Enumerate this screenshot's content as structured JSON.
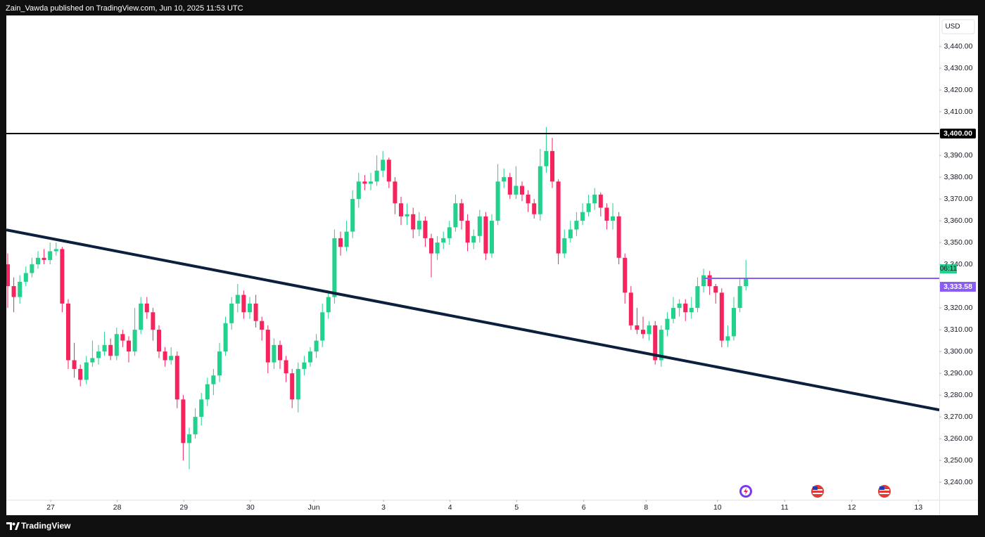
{
  "header": {
    "text": "Zain_Vawda published on TradingView.com, Jun 10, 2025 11:53 UTC"
  },
  "footer": {
    "brand": "TradingView"
  },
  "chart_data": {
    "type": "candlestick",
    "currency": "USD",
    "up_color": "#22d18b",
    "down_color": "#f5245d",
    "grid": false,
    "ylim": [
      3232.3,
      3454.2
    ],
    "yticks": [
      {
        "value": 3240,
        "label": "3,240.00"
      },
      {
        "value": 3250,
        "label": "3,250.00"
      },
      {
        "value": 3260,
        "label": "3,260.00"
      },
      {
        "value": 3270,
        "label": "3,270.00"
      },
      {
        "value": 3280,
        "label": "3,280.00"
      },
      {
        "value": 3290,
        "label": "3,290.00"
      },
      {
        "value": 3300,
        "label": "3,300.00"
      },
      {
        "value": 3310,
        "label": "3,310.00"
      },
      {
        "value": 3320,
        "label": "3,320.00"
      },
      {
        "value": 3330,
        "label": "3,330.00"
      },
      {
        "value": 3340,
        "label": "3,340.00"
      },
      {
        "value": 3350,
        "label": "3,350.00"
      },
      {
        "value": 3360,
        "label": "3,360.00"
      },
      {
        "value": 3370,
        "label": "3,370.00"
      },
      {
        "value": 3380,
        "label": "3,380.00"
      },
      {
        "value": 3390,
        "label": "3,390.00"
      },
      {
        "value": 3410,
        "label": "3,410.00"
      },
      {
        "value": 3420,
        "label": "3,420.00"
      },
      {
        "value": 3430,
        "label": "3,430.00"
      },
      {
        "value": 3440,
        "label": "3,440.00"
      }
    ],
    "xlim": [
      -0.23,
      153.95
    ],
    "xticks": [
      {
        "value": 7.1,
        "label": "27"
      },
      {
        "value": 18.1,
        "label": "28"
      },
      {
        "value": 29.1,
        "label": "29"
      },
      {
        "value": 40.1,
        "label": "30"
      },
      {
        "value": 50.6,
        "label": "Jun"
      },
      {
        "value": 62.1,
        "label": "3"
      },
      {
        "value": 73.1,
        "label": "4"
      },
      {
        "value": 84.1,
        "label": "5"
      },
      {
        "value": 95.2,
        "label": "6"
      },
      {
        "value": 105.5,
        "label": "8"
      },
      {
        "value": 117.3,
        "label": "10"
      },
      {
        "value": 128.4,
        "label": "11"
      },
      {
        "value": 139.5,
        "label": "12"
      },
      {
        "value": 150.5,
        "label": "13"
      }
    ],
    "candles": [
      [
        3340,
        3345,
        3320,
        3330
      ],
      [
        3330,
        3334,
        3318,
        3325
      ],
      [
        3325,
        3335,
        3322,
        3332
      ],
      [
        3332,
        3339,
        3330,
        3336
      ],
      [
        3336,
        3343,
        3334,
        3340
      ],
      [
        3340,
        3346,
        3338,
        3343
      ],
      [
        3343,
        3347,
        3340,
        3342
      ],
      [
        3342,
        3350,
        3340,
        3346
      ],
      [
        3346,
        3350,
        3344,
        3347
      ],
      [
        3347,
        3348,
        3318,
        3322
      ],
      [
        3322,
        3324,
        3292,
        3296
      ],
      [
        3296,
        3304,
        3288,
        3292
      ],
      [
        3292,
        3294,
        3284,
        3287
      ],
      [
        3287,
        3298,
        3285,
        3295
      ],
      [
        3295,
        3305,
        3293,
        3297
      ],
      [
        3297,
        3303,
        3294,
        3300
      ],
      [
        3300,
        3309,
        3298,
        3303
      ],
      [
        3303,
        3306,
        3296,
        3298
      ],
      [
        3298,
        3311,
        3296,
        3308
      ],
      [
        3308,
        3310,
        3302,
        3305
      ],
      [
        3305,
        3307,
        3295,
        3300
      ],
      [
        3300,
        3320,
        3298,
        3310
      ],
      [
        3310,
        3325,
        3308,
        3322
      ],
      [
        3322,
        3325,
        3315,
        3318
      ],
      [
        3318,
        3320,
        3305,
        3310
      ],
      [
        3310,
        3312,
        3297,
        3300
      ],
      [
        3300,
        3302,
        3293,
        3296
      ],
      [
        3296,
        3302,
        3294,
        3298
      ],
      [
        3298,
        3300,
        3274,
        3278
      ],
      [
        3278,
        3280,
        3250,
        3258
      ],
      [
        3258,
        3265,
        3246,
        3262
      ],
      [
        3262,
        3274,
        3260,
        3270
      ],
      [
        3270,
        3281,
        3266,
        3278
      ],
      [
        3278,
        3288,
        3275,
        3285
      ],
      [
        3285,
        3292,
        3280,
        3289
      ],
      [
        3289,
        3304,
        3286,
        3300
      ],
      [
        3300,
        3316,
        3298,
        3313
      ],
      [
        3313,
        3325,
        3310,
        3322
      ],
      [
        3322,
        3331,
        3318,
        3326
      ],
      [
        3326,
        3328,
        3315,
        3318
      ],
      [
        3318,
        3325,
        3315,
        3322
      ],
      [
        3322,
        3326,
        3311,
        3314
      ],
      [
        3314,
        3316,
        3305,
        3310
      ],
      [
        3310,
        3312,
        3290,
        3295
      ],
      [
        3295,
        3306,
        3292,
        3303
      ],
      [
        3303,
        3305,
        3292,
        3296
      ],
      [
        3296,
        3298,
        3286,
        3290
      ],
      [
        3290,
        3292,
        3274,
        3278
      ],
      [
        3278,
        3295,
        3272,
        3292
      ],
      [
        3292,
        3298,
        3289,
        3295
      ],
      [
        3295,
        3302,
        3293,
        3300
      ],
      [
        3300,
        3308,
        3297,
        3305
      ],
      [
        3305,
        3322,
        3302,
        3318
      ],
      [
        3318,
        3328,
        3315,
        3325
      ],
      [
        3325,
        3356,
        3322,
        3352
      ],
      [
        3352,
        3355,
        3344,
        3348
      ],
      [
        3348,
        3360,
        3346,
        3355
      ],
      [
        3355,
        3374,
        3352,
        3370
      ],
      [
        3370,
        3382,
        3366,
        3378
      ],
      [
        3378,
        3381,
        3374,
        3377
      ],
      [
        3377,
        3382,
        3374,
        3378
      ],
      [
        3378,
        3390,
        3376,
        3383
      ],
      [
        3383,
        3392,
        3380,
        3388
      ],
      [
        3388,
        3389,
        3375,
        3378
      ],
      [
        3378,
        3380,
        3363,
        3368
      ],
      [
        3368,
        3371,
        3358,
        3362
      ],
      [
        3362,
        3368,
        3358,
        3363
      ],
      [
        3363,
        3366,
        3352,
        3356
      ],
      [
        3356,
        3364,
        3353,
        3360
      ],
      [
        3360,
        3362,
        3348,
        3352
      ],
      [
        3352,
        3354,
        3334,
        3345
      ],
      [
        3345,
        3353,
        3342,
        3350
      ],
      [
        3350,
        3355,
        3347,
        3352
      ],
      [
        3352,
        3360,
        3349,
        3357
      ],
      [
        3357,
        3372,
        3355,
        3368
      ],
      [
        3368,
        3370,
        3356,
        3360
      ],
      [
        3360,
        3363,
        3346,
        3350
      ],
      [
        3350,
        3356,
        3347,
        3353
      ],
      [
        3353,
        3365,
        3350,
        3362
      ],
      [
        3362,
        3364,
        3342,
        3345
      ],
      [
        3345,
        3363,
        3343,
        3360
      ],
      [
        3360,
        3386,
        3358,
        3378
      ],
      [
        3378,
        3384,
        3375,
        3380
      ],
      [
        3380,
        3382,
        3370,
        3372
      ],
      [
        3372,
        3385,
        3370,
        3376
      ],
      [
        3376,
        3378,
        3369,
        3372
      ],
      [
        3372,
        3374,
        3364,
        3368
      ],
      [
        3368,
        3370,
        3361,
        3363
      ],
      [
        3363,
        3393,
        3360,
        3385
      ],
      [
        3385,
        3403,
        3382,
        3392
      ],
      [
        3392,
        3398,
        3375,
        3378
      ],
      [
        3378,
        3379,
        3340,
        3345
      ],
      [
        3345,
        3356,
        3343,
        3352
      ],
      [
        3352,
        3360,
        3350,
        3356
      ],
      [
        3356,
        3364,
        3353,
        3360
      ],
      [
        3360,
        3368,
        3358,
        3364
      ],
      [
        3364,
        3372,
        3362,
        3368
      ],
      [
        3368,
        3375,
        3365,
        3372
      ],
      [
        3372,
        3373,
        3362,
        3366
      ],
      [
        3366,
        3368,
        3356,
        3360
      ],
      [
        3360,
        3368,
        3356,
        3362
      ],
      [
        3362,
        3364,
        3340,
        3343
      ],
      [
        3343,
        3345,
        3322,
        3327
      ],
      [
        3327,
        3330,
        3310,
        3312
      ],
      [
        3312,
        3320,
        3308,
        3310
      ],
      [
        3310,
        3316,
        3306,
        3308
      ],
      [
        3308,
        3314,
        3305,
        3312
      ],
      [
        3312,
        3314,
        3294,
        3296
      ],
      [
        3296,
        3312,
        3293,
        3310
      ],
      [
        3310,
        3318,
        3307,
        3315
      ],
      [
        3315,
        3325,
        3313,
        3320
      ],
      [
        3320,
        3324,
        3316,
        3322
      ],
      [
        3322,
        3324,
        3314,
        3318
      ],
      [
        3318,
        3325,
        3315,
        3320
      ],
      [
        3320,
        3334,
        3318,
        3330
      ],
      [
        3330,
        3338,
        3327,
        3335
      ],
      [
        3335,
        3337,
        3326,
        3330
      ],
      [
        3330,
        3331,
        3322,
        3327
      ],
      [
        3327,
        3329,
        3302,
        3305
      ],
      [
        3305,
        3312,
        3302,
        3307
      ],
      [
        3307,
        3325,
        3305,
        3320
      ],
      [
        3320,
        3334,
        3318,
        3330
      ],
      [
        3330,
        3342,
        3328,
        3333.58
      ]
    ],
    "hline": {
      "value": 3400,
      "label": "3,400.00",
      "color": "#000000"
    },
    "trendline": {
      "x": [
        -0.23,
        153.95
      ],
      "y": [
        3355.8,
        3273.2
      ],
      "color": "#0c1f3f"
    },
    "price_line": {
      "x_start": 115,
      "value": 3333.58,
      "label": "3,333.58",
      "countdown": "06:11",
      "color": "#8a5cf6",
      "countdown_color": "#22d18b"
    }
  }
}
